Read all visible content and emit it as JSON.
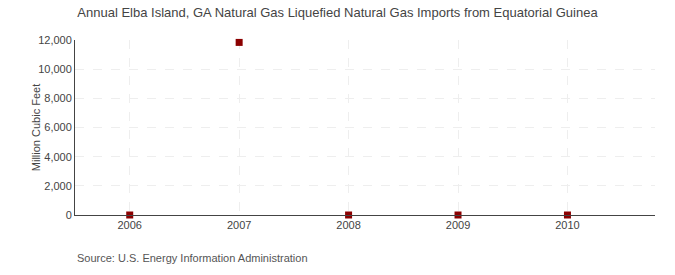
{
  "chart_data": {
    "type": "scatter",
    "title": "Annual Elba Island, GA Natural Gas Liquefied Natural Gas Imports from Equatorial Guinea",
    "ylabel": "Million Cubic Feet",
    "annotations": [
      "Source: U.S. Energy Information Administration"
    ],
    "x": [
      2006,
      2007,
      2008,
      2009,
      2010
    ],
    "values": [
      0,
      11835,
      0,
      0,
      0
    ],
    "color": "#8b0000",
    "marker": "square",
    "xlim": [
      2005.5,
      2010.8
    ],
    "xticks": [
      2006,
      2007,
      2008,
      2009,
      2010
    ],
    "ylim": [
      0,
      12000
    ],
    "yticks": [
      0,
      {
        "value": 2000,
        "label": "2,000"
      },
      {
        "value": 4000,
        "label": "4,000"
      },
      {
        "value": 6000,
        "label": "6,000"
      },
      {
        "value": 8000,
        "label": "8,000"
      },
      {
        "value": 10000,
        "label": "10,000"
      },
      {
        "value": 12000,
        "label": "12,000"
      }
    ],
    "grid": true
  }
}
